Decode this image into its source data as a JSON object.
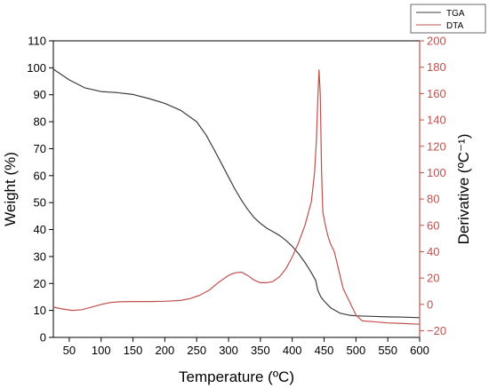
{
  "chart_data": {
    "type": "line",
    "xlabel": "Temperature (ºC)",
    "ylabel_left": "Weight (%)",
    "ylabel_right": "Derivative (ºC⁻¹)",
    "xlim": [
      25,
      600
    ],
    "ylim_left": [
      0,
      110
    ],
    "ylim_right": [
      -25,
      200
    ],
    "x_ticks": [
      50,
      100,
      150,
      200,
      250,
      300,
      350,
      400,
      450,
      500,
      550,
      600
    ],
    "y_ticks_left": [
      0,
      10,
      20,
      30,
      40,
      50,
      60,
      70,
      80,
      90,
      100,
      110
    ],
    "y_ticks_right": [
      -20,
      0,
      20,
      40,
      60,
      80,
      100,
      120,
      140,
      160,
      180,
      200
    ],
    "legend_position": "top-right",
    "grid": false,
    "left_axis_color": "#000000",
    "right_axis_color": "#c0504d",
    "series": [
      {
        "name": "TGA",
        "axis": "left",
        "color": "#3c3c3c",
        "x": [
          25,
          50,
          75,
          100,
          125,
          150,
          175,
          200,
          225,
          250,
          265,
          280,
          290,
          300,
          310,
          320,
          330,
          340,
          350,
          360,
          370,
          380,
          390,
          400,
          410,
          420,
          430,
          437,
          440,
          445,
          450,
          460,
          475,
          490,
          500,
          525,
          550,
          575,
          600
        ],
        "y": [
          99.5,
          95.5,
          92.5,
          91.2,
          90.8,
          90.1,
          88.6,
          86.8,
          84.2,
          80.0,
          75.0,
          68.5,
          64.0,
          59.5,
          55.0,
          51.0,
          47.5,
          44.5,
          42.3,
          40.5,
          39.2,
          37.8,
          36.0,
          33.8,
          31.0,
          27.8,
          24.0,
          21.0,
          17.5,
          15.0,
          13.5,
          11.0,
          9.0,
          8.2,
          8.0,
          7.8,
          7.6,
          7.5,
          7.3
        ]
      },
      {
        "name": "DTA",
        "axis": "right",
        "color": "#c0504d",
        "x": [
          25,
          40,
          55,
          70,
          85,
          100,
          115,
          130,
          150,
          175,
          200,
          225,
          240,
          255,
          270,
          285,
          300,
          310,
          320,
          330,
          340,
          350,
          360,
          370,
          380,
          390,
          400,
          410,
          420,
          430,
          435,
          438,
          440,
          442,
          444,
          446,
          448,
          452,
          456,
          460,
          466,
          470,
          475,
          480,
          490,
          500,
          510,
          525,
          550,
          575,
          600
        ],
        "y": [
          -2,
          -3.5,
          -4.5,
          -4,
          -2,
          0,
          1.5,
          2,
          2.2,
          2.2,
          2.4,
          3,
          4.5,
          7,
          11,
          17,
          22,
          24,
          24.5,
          22,
          18.5,
          16.5,
          16.5,
          17.5,
          21,
          27,
          36,
          47,
          60,
          78,
          100,
          125,
          155,
          178,
          160,
          100,
          70,
          60,
          52,
          46,
          40,
          32,
          22,
          12,
          2,
          -8,
          -12.5,
          -13,
          -14,
          -14.5,
          -15
        ]
      }
    ]
  }
}
